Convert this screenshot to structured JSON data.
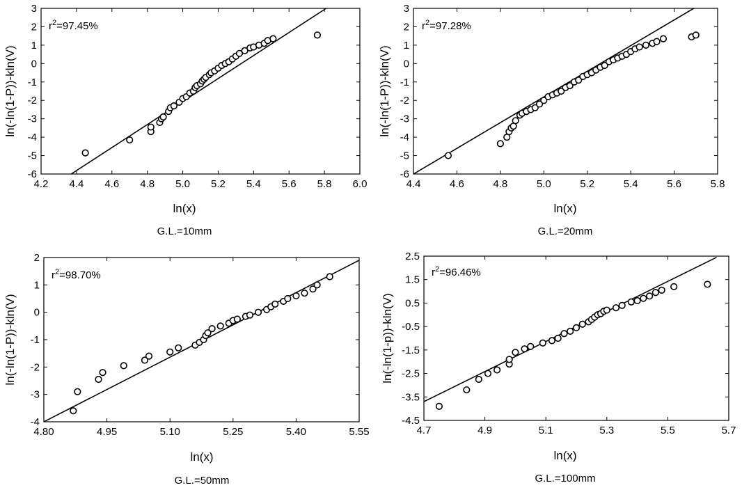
{
  "chart_data": [
    {
      "type": "scatter",
      "r2_prefix": "r",
      "r2_sup": "2",
      "r2_value": "=97.45%",
      "xlabel": "ln(x)",
      "ylabel": "ln(-ln(1-P))-kln(V)",
      "caption": "G.L.=10mm",
      "xlim": [
        4.2,
        6.0
      ],
      "ylim": [
        -6,
        3
      ],
      "xticks": [
        "4.2",
        "4.4",
        "4.6",
        "4.8",
        "5.0",
        "5.2",
        "5.4",
        "5.6",
        "5.8",
        "6.0"
      ],
      "yticks": [
        "-6",
        "-5",
        "-4",
        "-3",
        "-2",
        "-1",
        "0",
        "1",
        "2",
        "3"
      ],
      "fit_line": [
        [
          4.37,
          -6.0
        ],
        [
          5.81,
          3.0
        ]
      ],
      "points": [
        [
          4.45,
          -4.85
        ],
        [
          4.7,
          -4.15
        ],
        [
          4.82,
          -3.7
        ],
        [
          4.82,
          -3.45
        ],
        [
          4.87,
          -3.2
        ],
        [
          4.88,
          -3.0
        ],
        [
          4.89,
          -2.9
        ],
        [
          4.92,
          -2.6
        ],
        [
          4.93,
          -2.4
        ],
        [
          4.95,
          -2.3
        ],
        [
          4.98,
          -2.1
        ],
        [
          5.0,
          -1.9
        ],
        [
          5.02,
          -1.8
        ],
        [
          5.04,
          -1.6
        ],
        [
          5.06,
          -1.5
        ],
        [
          5.07,
          -1.3
        ],
        [
          5.08,
          -1.2
        ],
        [
          5.1,
          -1.1
        ],
        [
          5.11,
          -0.95
        ],
        [
          5.12,
          -0.85
        ],
        [
          5.13,
          -0.75
        ],
        [
          5.15,
          -0.6
        ],
        [
          5.16,
          -0.5
        ],
        [
          5.18,
          -0.4
        ],
        [
          5.2,
          -0.25
        ],
        [
          5.22,
          -0.1
        ],
        [
          5.24,
          0.0
        ],
        [
          5.26,
          0.1
        ],
        [
          5.28,
          0.25
        ],
        [
          5.3,
          0.4
        ],
        [
          5.32,
          0.55
        ],
        [
          5.35,
          0.7
        ],
        [
          5.38,
          0.85
        ],
        [
          5.4,
          0.9
        ],
        [
          5.43,
          1.0
        ],
        [
          5.46,
          1.1
        ],
        [
          5.48,
          1.25
        ],
        [
          5.51,
          1.35
        ],
        [
          5.76,
          1.55
        ]
      ]
    },
    {
      "type": "scatter",
      "r2_prefix": "r",
      "r2_sup": "2",
      "r2_value": "=97.28%",
      "xlabel": "ln(x)",
      "ylabel": "ln(-ln(1-P))-kln(V)",
      "caption": "G.L.=20mm",
      "xlim": [
        4.4,
        5.8
      ],
      "ylim": [
        -6,
        3
      ],
      "xticks": [
        "4.4",
        "4.6",
        "4.8",
        "5.0",
        "5.2",
        "5.4",
        "5.6",
        "5.8"
      ],
      "yticks": [
        "-6",
        "-5",
        "-4",
        "-3",
        "-2",
        "-1",
        "0",
        "1",
        "2",
        "3"
      ],
      "fit_line": [
        [
          4.4,
          -6.0
        ],
        [
          5.69,
          3.0
        ]
      ],
      "points": [
        [
          4.56,
          -5.0
        ],
        [
          4.8,
          -4.35
        ],
        [
          4.83,
          -4.0
        ],
        [
          4.84,
          -3.7
        ],
        [
          4.85,
          -3.5
        ],
        [
          4.86,
          -3.4
        ],
        [
          4.87,
          -3.1
        ],
        [
          4.89,
          -2.8
        ],
        [
          4.9,
          -2.7
        ],
        [
          4.92,
          -2.6
        ],
        [
          4.94,
          -2.5
        ],
        [
          4.96,
          -2.4
        ],
        [
          4.98,
          -2.2
        ],
        [
          5.0,
          -2.0
        ],
        [
          5.02,
          -1.8
        ],
        [
          5.04,
          -1.7
        ],
        [
          5.06,
          -1.6
        ],
        [
          5.08,
          -1.5
        ],
        [
          5.1,
          -1.3
        ],
        [
          5.12,
          -1.2
        ],
        [
          5.14,
          -1.0
        ],
        [
          5.16,
          -0.9
        ],
        [
          5.18,
          -0.7
        ],
        [
          5.2,
          -0.6
        ],
        [
          5.22,
          -0.5
        ],
        [
          5.24,
          -0.35
        ],
        [
          5.26,
          -0.2
        ],
        [
          5.28,
          -0.1
        ],
        [
          5.3,
          0.1
        ],
        [
          5.32,
          0.2
        ],
        [
          5.34,
          0.3
        ],
        [
          5.36,
          0.4
        ],
        [
          5.38,
          0.5
        ],
        [
          5.4,
          0.65
        ],
        [
          5.42,
          0.8
        ],
        [
          5.44,
          0.9
        ],
        [
          5.47,
          1.0
        ],
        [
          5.5,
          1.1
        ],
        [
          5.52,
          1.2
        ],
        [
          5.55,
          1.35
        ],
        [
          5.68,
          1.45
        ],
        [
          5.7,
          1.55
        ]
      ]
    },
    {
      "type": "scatter",
      "r2_prefix": "r",
      "r2_sup": "2",
      "r2_value": "=98.70%",
      "xlabel": "ln(x)",
      "ylabel": "ln(-ln(1-P))-kln(V)",
      "caption": "G.L.=50mm",
      "xlim": [
        4.8,
        5.55
      ],
      "ylim": [
        -4,
        2
      ],
      "xticks": [
        "4.80",
        "4.95",
        "5.10",
        "5.25",
        "5.40",
        "5.55"
      ],
      "yticks": [
        "-4",
        "-3",
        "-2",
        "-1",
        "0",
        "1",
        "2"
      ],
      "fit_line": [
        [
          4.8,
          -4.0
        ],
        [
          5.55,
          1.9
        ]
      ],
      "points": [
        [
          4.87,
          -3.6
        ],
        [
          4.88,
          -2.9
        ],
        [
          4.93,
          -2.45
        ],
        [
          4.94,
          -2.2
        ],
        [
          4.99,
          -1.95
        ],
        [
          5.04,
          -1.75
        ],
        [
          5.05,
          -1.6
        ],
        [
          5.1,
          -1.45
        ],
        [
          5.12,
          -1.3
        ],
        [
          5.16,
          -1.2
        ],
        [
          5.17,
          -1.1
        ],
        [
          5.18,
          -1.0
        ],
        [
          5.185,
          -0.85
        ],
        [
          5.19,
          -0.75
        ],
        [
          5.2,
          -0.6
        ],
        [
          5.22,
          -0.5
        ],
        [
          5.24,
          -0.4
        ],
        [
          5.25,
          -0.3
        ],
        [
          5.26,
          -0.25
        ],
        [
          5.28,
          -0.15
        ],
        [
          5.29,
          -0.1
        ],
        [
          5.31,
          0.0
        ],
        [
          5.33,
          0.1
        ],
        [
          5.34,
          0.2
        ],
        [
          5.35,
          0.3
        ],
        [
          5.37,
          0.4
        ],
        [
          5.38,
          0.5
        ],
        [
          5.4,
          0.6
        ],
        [
          5.42,
          0.7
        ],
        [
          5.44,
          0.85
        ],
        [
          5.45,
          1.0
        ],
        [
          5.48,
          1.3
        ]
      ]
    },
    {
      "type": "scatter",
      "r2_prefix": "r",
      "r2_sup": "2",
      "r2_value": "=96.46%",
      "xlabel": "ln(x)",
      "ylabel": "ln(-ln(1-p))-kln(V)",
      "caption": "G.L.=100mm",
      "xlim": [
        4.7,
        5.7
      ],
      "ylim": [
        -4.5,
        2.5
      ],
      "xticks": [
        "4.7",
        "4.9",
        "5.1",
        "5.3",
        "5.5",
        "5.7"
      ],
      "yticks": [
        "-4.5",
        "-3.5",
        "-2.5",
        "-1.5",
        "-0.5",
        "0.5",
        "1.5",
        "2.5"
      ],
      "fit_line": [
        [
          4.7,
          -3.7
        ],
        [
          5.66,
          2.45
        ]
      ],
      "points": [
        [
          4.75,
          -3.9
        ],
        [
          4.84,
          -3.2
        ],
        [
          4.88,
          -2.75
        ],
        [
          4.91,
          -2.5
        ],
        [
          4.94,
          -2.35
        ],
        [
          4.98,
          -2.1
        ],
        [
          4.98,
          -1.9
        ],
        [
          5.0,
          -1.6
        ],
        [
          5.03,
          -1.45
        ],
        [
          5.05,
          -1.35
        ],
        [
          5.09,
          -1.2
        ],
        [
          5.12,
          -1.1
        ],
        [
          5.14,
          -1.0
        ],
        [
          5.16,
          -0.8
        ],
        [
          5.18,
          -0.7
        ],
        [
          5.2,
          -0.55
        ],
        [
          5.22,
          -0.4
        ],
        [
          5.24,
          -0.3
        ],
        [
          5.25,
          -0.2
        ],
        [
          5.26,
          -0.1
        ],
        [
          5.27,
          0.0
        ],
        [
          5.28,
          0.05
        ],
        [
          5.29,
          0.15
        ],
        [
          5.3,
          0.2
        ],
        [
          5.33,
          0.3
        ],
        [
          5.35,
          0.4
        ],
        [
          5.38,
          0.55
        ],
        [
          5.4,
          0.6
        ],
        [
          5.42,
          0.7
        ],
        [
          5.44,
          0.8
        ],
        [
          5.46,
          0.95
        ],
        [
          5.48,
          1.05
        ],
        [
          5.52,
          1.2
        ],
        [
          5.63,
          1.3
        ]
      ]
    }
  ]
}
